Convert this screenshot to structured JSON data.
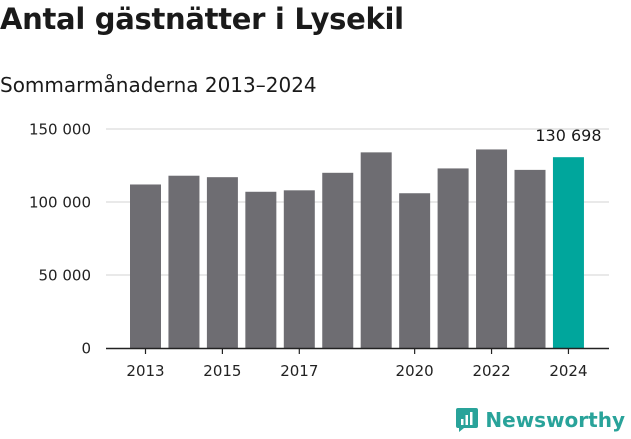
{
  "title": "Antal gästnätter i Lysekil",
  "subtitle": "Sommarmånaderna 2013–2024",
  "brand": {
    "name": "Newsworthy",
    "icon": "chart-bubble-icon"
  },
  "colors": {
    "bar": "#6e6d72",
    "highlight": "#00a69c",
    "grid": "#dcdcdc",
    "axis": "#222222",
    "brand": "#29a39a"
  },
  "chart_data": {
    "type": "bar",
    "categories": [
      "2013",
      "2014",
      "2015",
      "2016",
      "2017",
      "2018",
      "2019",
      "2020",
      "2021",
      "2022",
      "2023",
      "2024"
    ],
    "values": [
      112000,
      118000,
      117000,
      107000,
      108000,
      120000,
      134000,
      106000,
      123000,
      136000,
      122000,
      130698
    ],
    "highlight_index": 11,
    "data_label": "130 698",
    "x_tick_labels": [
      "2013",
      "",
      "2015",
      "",
      "2017",
      "",
      "",
      "2020",
      "",
      "2022",
      "",
      "2024"
    ],
    "y_ticks": [
      0,
      50000,
      100000,
      150000
    ],
    "y_tick_labels": [
      "0",
      "50 000",
      "100 000",
      "150 000"
    ],
    "ylim": [
      0,
      150000
    ],
    "grid": true
  }
}
